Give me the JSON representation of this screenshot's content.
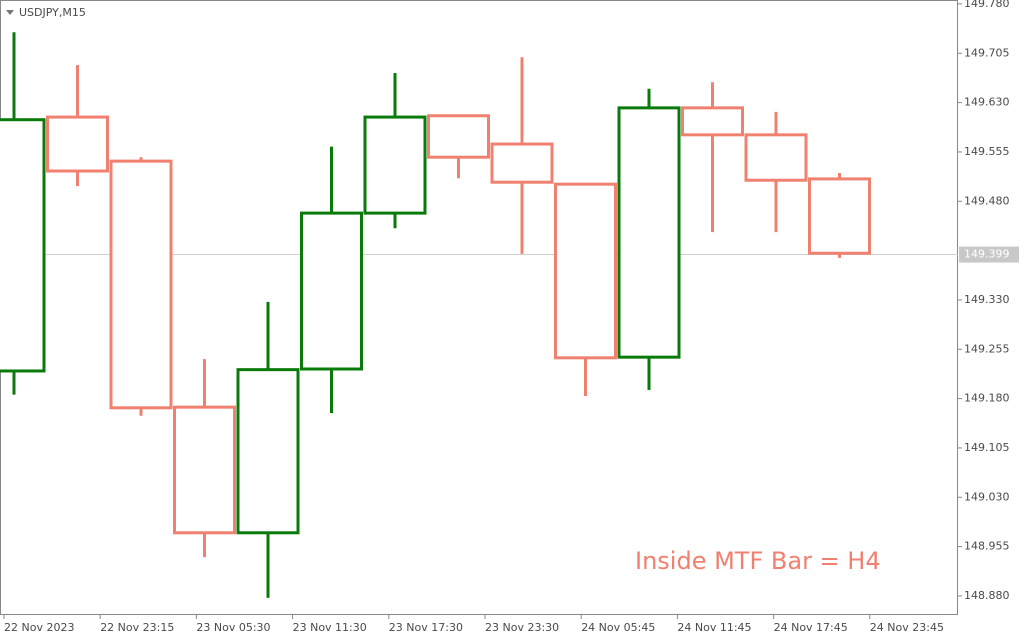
{
  "chart_data": {
    "type": "mtf-boxes",
    "symbol": "USDJPY,M15",
    "annotation": "Inside MTF Bar = H4",
    "up_color": "#0a7a0a",
    "down_color": "#f0806f",
    "open": [
      149.222,
      149.608,
      149.541,
      149.167,
      148.976,
      149.225,
      149.462,
      149.61,
      149.567,
      149.506,
      149.243,
      149.622,
      149.581,
      149.514
    ],
    "high": [
      149.737,
      149.687,
      149.547,
      149.24,
      149.327,
      149.563,
      149.675,
      149.61,
      149.699,
      149.506,
      149.651,
      149.661,
      149.616,
      149.523
    ],
    "low": [
      149.186,
      149.503,
      149.154,
      148.939,
      148.877,
      149.158,
      149.439,
      149.515,
      149.4,
      149.184,
      149.193,
      149.433,
      149.433,
      149.394
    ],
    "close": [
      149.604,
      149.526,
      149.166,
      148.976,
      149.224,
      149.462,
      149.608,
      149.547,
      149.509,
      149.242,
      149.622,
      149.581,
      149.512,
      149.401
    ],
    "x_labels": [
      "22 Nov 2023",
      "22 Nov 23:15",
      "23 Nov 05:30",
      "23 Nov 11:30",
      "23 Nov 17:30",
      "23 Nov 23:30",
      "24 Nov 05:45",
      "24 Nov 11:45",
      "24 Nov 17:45",
      "24 Nov 23:45"
    ],
    "ylim": [
      148.851,
      149.786
    ],
    "yticks": [
      {
        "value": 149.78,
        "label": "149.780"
      },
      {
        "value": 149.705,
        "label": "149.705"
      },
      {
        "value": 149.63,
        "label": "149.630"
      },
      {
        "value": 149.555,
        "label": "149.555"
      },
      {
        "value": 149.48,
        "label": "149.480"
      },
      {
        "value": 149.33,
        "label": "149.330"
      },
      {
        "value": 149.255,
        "label": "149.255"
      },
      {
        "value": 149.18,
        "label": "149.180"
      },
      {
        "value": 149.105,
        "label": "149.105"
      },
      {
        "value": 149.03,
        "label": "149.030"
      },
      {
        "value": 148.955,
        "label": "148.955"
      },
      {
        "value": 148.88,
        "label": "148.880"
      }
    ],
    "last_price": {
      "value": 149.399,
      "label": "149.399"
    }
  }
}
